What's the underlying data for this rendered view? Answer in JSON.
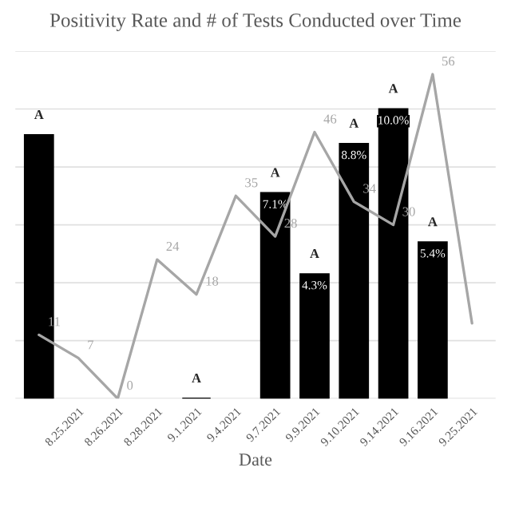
{
  "chart_data": {
    "type": "bar",
    "title": "Positivity Rate and # of Tests Conducted over Time",
    "xlabel": "Date",
    "categories": [
      null,
      "8.25.2021",
      "8.26.2021",
      "8.28.2021",
      "9.1.2021",
      "9.4.2021",
      "9.7.2021",
      "9.9.2021",
      "9.10.2021",
      "9.14.2021",
      "9.16.2021",
      "9.25.2021"
    ],
    "series": [
      {
        "color": "#000000",
        "values": [
          9.1,
          null,
          null,
          null,
          0,
          null,
          7.1,
          4.3,
          8.8,
          10.0,
          5.4,
          null
        ],
        "value_labels": [
          null,
          null,
          null,
          null,
          null,
          null,
          "7.1%",
          "4.3%",
          "8.8%",
          "10.0%",
          "5.4%",
          null
        ]
      },
      {
        "type": "line",
        "axis": "y2",
        "color": "#a6a6a6",
        "values": [
          11,
          7,
          0,
          24,
          18,
          35,
          28,
          46,
          34,
          30,
          56,
          13
        ],
        "value_labels": [
          "11",
          "7",
          "0",
          "24",
          "18",
          "35",
          "28",
          "46",
          "34",
          "30",
          "56",
          null
        ]
      }
    ],
    "ylim": [
      0,
      12
    ],
    "yticks": [
      {
        "value": 0,
        "label": null
      },
      {
        "value": 2,
        "label": null
      },
      {
        "value": 4,
        "label": null
      },
      {
        "value": 6,
        "label": null
      },
      {
        "value": 8,
        "label": null
      },
      {
        "value": 10,
        "label": null
      },
      {
        "value": 12,
        "label": null
      }
    ],
    "y2lim": [
      0,
      60
    ],
    "tick_labels": "x",
    "grid": "y",
    "legend": false,
    "marker": "none",
    "line_style": "solid",
    "annotations": [
      "A",
      "A",
      "A",
      "A",
      "A",
      "A",
      "A"
    ]
  }
}
